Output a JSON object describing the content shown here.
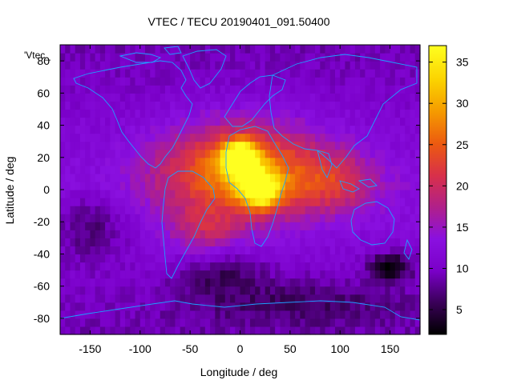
{
  "chart_data": {
    "type": "heatmap",
    "title": "VTEC / TECU 20190401_091.50400",
    "xlabel": "Longitude / deg",
    "ylabel": "Latitude / deg",
    "legend_label": "'Vtec_",
    "xlim": [
      -180,
      180
    ],
    "ylim": [
      -90,
      90
    ],
    "x_ticks": [
      -150,
      -100,
      -50,
      0,
      50,
      100,
      150
    ],
    "y_ticks": [
      -80,
      -60,
      -40,
      -20,
      0,
      20,
      40,
      60,
      80
    ],
    "colorbar": {
      "min": 2,
      "max": 37,
      "ticks": [
        5,
        10,
        15,
        20,
        25,
        30,
        35
      ]
    },
    "colormap": [
      "#000000",
      "#3a0058",
      "#7a00c8",
      "#8a10e0",
      "#b0208a",
      "#d8304a",
      "#ec5a10",
      "#f59a00",
      "#fbd200",
      "#ffff20"
    ],
    "grid_step_deg": 5,
    "peaks": [
      {
        "lon": 2,
        "lat": 12,
        "value": 30,
        "sigma_lon": 55,
        "sigma_lat": 20
      },
      {
        "lon": 0,
        "lat": 20,
        "value": 36,
        "sigma_lon": 12,
        "sigma_lat": 7
      },
      {
        "lon": 20,
        "lat": 0,
        "value": 33,
        "sigma_lon": 14,
        "sigma_lat": 8
      },
      {
        "lon": 95,
        "lat": 5,
        "value": 20,
        "sigma_lon": 28,
        "sigma_lat": 13
      },
      {
        "lon": -35,
        "lat": -25,
        "value": 19,
        "sigma_lon": 25,
        "sigma_lat": 10
      },
      {
        "lon": -15,
        "lat": -55,
        "value": 8,
        "sigma_lon": 30,
        "sigma_lat": 10
      }
    ],
    "background_value": 13,
    "low_regions": [
      {
        "lon": 150,
        "lat": -48,
        "value": 1.5,
        "sigma_lon": 15,
        "sigma_lat": 6
      },
      {
        "lon": -150,
        "lat": -25,
        "value": 7,
        "sigma_lon": 25,
        "sigma_lat": 15
      },
      {
        "lon": 60,
        "lat": -70,
        "value": 6,
        "sigma_lon": 80,
        "sigma_lat": 10
      }
    ]
  }
}
